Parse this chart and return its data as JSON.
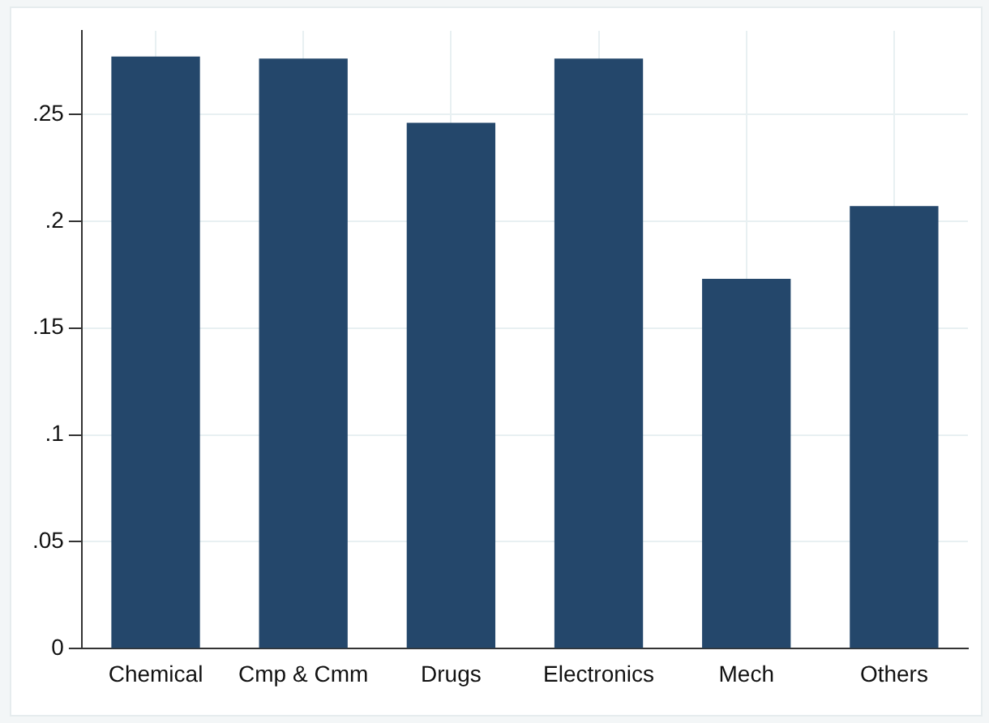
{
  "chart_data": {
    "type": "bar",
    "categories": [
      "Chemical",
      "Cmp & Cmm",
      "Drugs",
      "Electronics",
      "Mech",
      "Others"
    ],
    "values": [
      0.277,
      0.276,
      0.246,
      0.276,
      0.173,
      0.207
    ],
    "color": "#24476b",
    "ylim": [
      0,
      0.289
    ],
    "yticks": [
      0,
      {
        "value": 0.05,
        "label": ".05"
      },
      {
        "value": 0.1,
        "label": ".1"
      },
      {
        "value": 0.15,
        "label": ".15"
      },
      {
        "value": 0.2,
        "label": ".2"
      },
      {
        "value": 0.25,
        "label": ".25"
      }
    ],
    "grid": true
  }
}
